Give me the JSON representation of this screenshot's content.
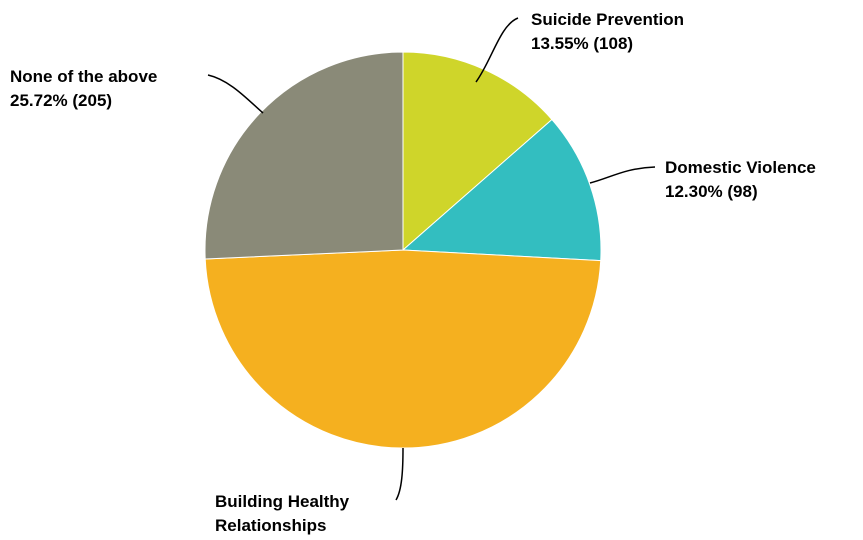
{
  "chart_data": {
    "type": "pie",
    "slices": [
      {
        "label": "Suicide Prevention",
        "value_text": "13.55% (108)",
        "percent": 13.55,
        "count": 108,
        "color": "#cfd52a"
      },
      {
        "label": "Domestic Violence",
        "value_text": "12.30% (98)",
        "percent": 12.3,
        "count": 98,
        "color": "#33bec0"
      },
      {
        "label": "Building Healthy Relationships",
        "label_lines": [
          "Building Healthy",
          "Relationships"
        ],
        "value_text": "",
        "percent": 48.43,
        "count": 386,
        "color": "#f5b01f"
      },
      {
        "label": "None of the above",
        "value_text": "25.72% (205)",
        "percent": 25.72,
        "count": 205,
        "color": "#8a8a78"
      }
    ],
    "start_angle_deg": 0,
    "direction": "clockwise"
  }
}
